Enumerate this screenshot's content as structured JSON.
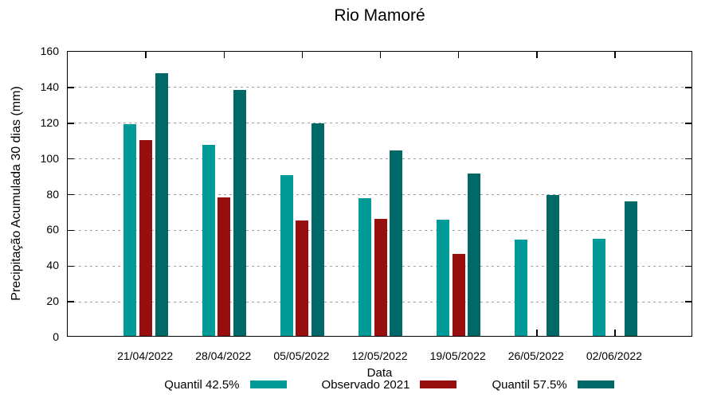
{
  "chart_data": {
    "type": "bar",
    "title": "Rio Mamoré",
    "xlabel": "Data",
    "ylabel": "Precipitação Acumulada 30 dias (mm)",
    "categories": [
      "21/04/2022",
      "28/04/2022",
      "05/05/2022",
      "12/05/2022",
      "19/05/2022",
      "26/05/2022",
      "02/06/2022"
    ],
    "series": [
      {
        "name": "Quantil 42.5%",
        "color": "#009B96",
        "values": [
          118.5,
          107,
          90,
          77,
          65,
          54,
          54.5
        ]
      },
      {
        "name": "Observado 2021",
        "color": "#960E0E",
        "values": [
          109.5,
          77.5,
          64.5,
          65.5,
          46,
          null,
          null
        ]
      },
      {
        "name": "Quantil 57.5%",
        "color": "#006867",
        "values": [
          147,
          137.5,
          119,
          104,
          91,
          79,
          75.5
        ]
      }
    ],
    "ylim": [
      0,
      160
    ],
    "yticks": [
      0,
      20,
      40,
      60,
      80,
      100,
      120,
      140,
      160
    ],
    "grid": "horizontal-dotted",
    "legend_position": "bottom-center",
    "colors": {
      "axis": "#000000",
      "grid": "#9e9e9e",
      "background": "#ffffff"
    }
  }
}
